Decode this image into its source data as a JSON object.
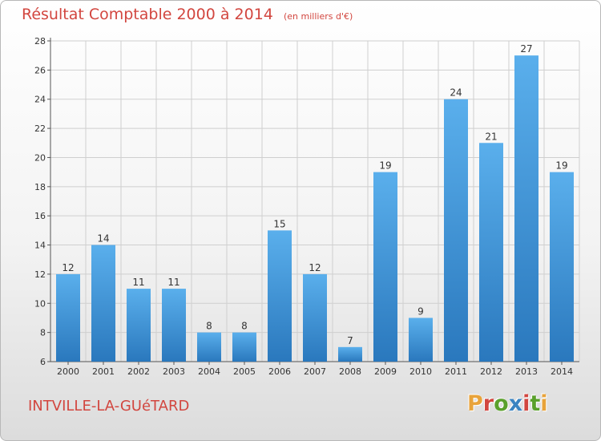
{
  "header": {
    "title": "Résultat Comptable 2000 à 2014",
    "unit": "(en milliers d'€)"
  },
  "footer": {
    "commune": "INTVILLE-LA-GUéTARD",
    "logo_text": "Proxiti",
    "logo_colors": [
      "#e8a33a",
      "#d2463f",
      "#5aa02c",
      "#3a83c1",
      "#d2463f",
      "#5aa02c",
      "#e8a33a"
    ]
  },
  "chart_data": {
    "type": "bar",
    "categories": [
      "2000",
      "2001",
      "2002",
      "2003",
      "2004",
      "2005",
      "2006",
      "2007",
      "2008",
      "2009",
      "2010",
      "2011",
      "2012",
      "2013",
      "2014"
    ],
    "values": [
      12,
      14,
      11,
      11,
      8,
      8,
      15,
      12,
      7,
      19,
      9,
      24,
      21,
      27,
      19
    ],
    "title": "Résultat Comptable 2000 à 2014",
    "xlabel": "",
    "ylabel": "",
    "ylim": [
      6,
      28
    ],
    "yticks": [
      6,
      8,
      10,
      12,
      14,
      16,
      18,
      20,
      22,
      24,
      26,
      28
    ],
    "grid": true,
    "bar_color": "#3a8fd6",
    "grid_color": "#cfcfcf"
  }
}
